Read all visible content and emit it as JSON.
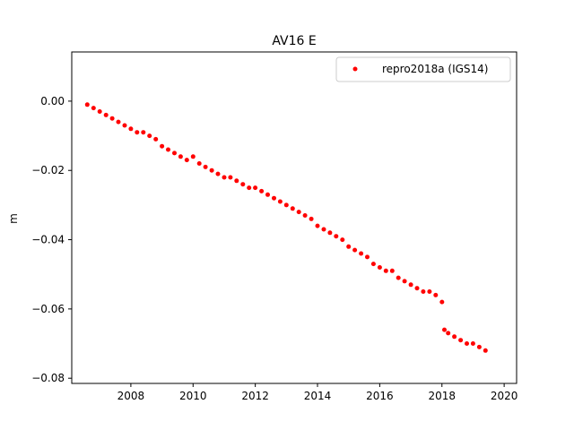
{
  "chart_data": {
    "type": "scatter",
    "title": "AV16 E",
    "xlabel": "",
    "ylabel": "m",
    "xlim": [
      2006.1,
      2020.4
    ],
    "ylim": [
      -0.0815,
      0.0142
    ],
    "xticks": [
      2008,
      2010,
      2012,
      2014,
      2016,
      2018,
      2020
    ],
    "xtick_labels": [
      "2008",
      "2010",
      "2012",
      "2014",
      "2016",
      "2018",
      "2020"
    ],
    "yticks": [
      0.0,
      -0.02,
      -0.04,
      -0.06,
      -0.08
    ],
    "ytick_labels": [
      "0.00",
      "−0.02",
      "−0.04",
      "−0.06",
      "−0.08"
    ],
    "grid": false,
    "legend_position": "upper right",
    "series": [
      {
        "name": "repro2018a (IGS14)",
        "color": "#ff0000",
        "marker": "circle",
        "x": [
          2006.6,
          2006.8,
          2007.0,
          2007.2,
          2007.4,
          2007.6,
          2007.8,
          2008.0,
          2008.2,
          2008.4,
          2008.6,
          2008.8,
          2009.0,
          2009.2,
          2009.4,
          2009.6,
          2009.8,
          2010.0,
          2010.2,
          2010.4,
          2010.6,
          2010.8,
          2011.0,
          2011.2,
          2011.4,
          2011.6,
          2011.8,
          2012.0,
          2012.2,
          2012.4,
          2012.6,
          2012.8,
          2013.0,
          2013.2,
          2013.4,
          2013.6,
          2013.8,
          2014.0,
          2014.2,
          2014.4,
          2014.6,
          2014.8,
          2015.0,
          2015.2,
          2015.4,
          2015.6,
          2015.8,
          2016.0,
          2016.2,
          2016.4,
          2016.6,
          2016.8,
          2017.0,
          2017.2,
          2017.4,
          2017.6,
          2017.8,
          2018.0,
          2018.08,
          2018.2,
          2018.4,
          2018.6,
          2018.8,
          2019.0,
          2019.2,
          2019.4
        ],
        "y": [
          -0.001,
          -0.002,
          -0.003,
          -0.004,
          -0.005,
          -0.006,
          -0.007,
          -0.008,
          -0.009,
          -0.009,
          -0.01,
          -0.011,
          -0.013,
          -0.014,
          -0.015,
          -0.016,
          -0.017,
          -0.016,
          -0.018,
          -0.019,
          -0.02,
          -0.021,
          -0.022,
          -0.022,
          -0.023,
          -0.024,
          -0.025,
          -0.025,
          -0.026,
          -0.027,
          -0.028,
          -0.029,
          -0.03,
          -0.031,
          -0.032,
          -0.033,
          -0.034,
          -0.036,
          -0.037,
          -0.038,
          -0.039,
          -0.04,
          -0.042,
          -0.043,
          -0.044,
          -0.045,
          -0.047,
          -0.048,
          -0.049,
          -0.049,
          -0.051,
          -0.052,
          -0.053,
          -0.054,
          -0.055,
          -0.055,
          -0.056,
          -0.058,
          -0.066,
          -0.067,
          -0.068,
          -0.069,
          -0.07,
          -0.07,
          -0.071,
          -0.072
        ]
      }
    ]
  }
}
